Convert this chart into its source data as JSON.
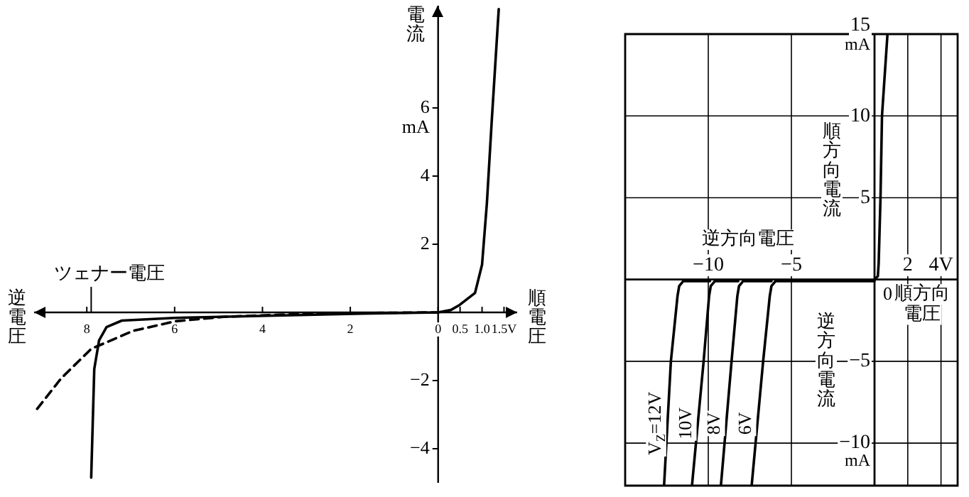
{
  "chart_data": [
    {
      "type": "line",
      "ylabel": "電流",
      "xlabel": "順電圧",
      "annotations": [
        "逆電圧",
        "mA",
        "ツェナー電圧"
      ],
      "xlim": [
        -9.2,
        1.8
      ],
      "xticks": [
        {
          "value": -8,
          "label": "8"
        },
        {
          "value": -6,
          "label": "6"
        },
        {
          "value": -4,
          "label": "4"
        },
        {
          "value": -2,
          "label": "2"
        },
        0,
        0.5,
        {
          "value": 1,
          "label": "1.0"
        },
        {
          "value": 1.5,
          "label": "1.5V"
        }
      ],
      "ylim": [
        -5,
        9
      ],
      "yticks": [
        {
          "value": -4,
          "label": "−4"
        },
        {
          "value": -2,
          "label": "−2"
        },
        2,
        4,
        6
      ],
      "legend": false,
      "marker": "none",
      "series": [
        {
          "color": "#000000",
          "x": [
            -7.9,
            -7.83,
            -7.72,
            -7.55,
            -7.2,
            -6,
            -3.9,
            -1.5,
            0,
            0.29,
            0.49,
            0.84,
            1,
            1.11,
            1.22,
            1.38
          ],
          "values": [
            -4.85,
            -1.66,
            -0.82,
            -0.43,
            -0.24,
            -0.16,
            -0.1,
            -0.03,
            0,
            0.07,
            0.22,
            0.57,
            1.4,
            3.2,
            5.6,
            8.9
          ]
        },
        {
          "color": "#000000",
          "line_style": "dashed",
          "x": [
            -9.13,
            -8.58,
            -7.9,
            -6.94,
            -5.98,
            -4.89,
            -2.84,
            0
          ],
          "values": [
            -2.83,
            -1.93,
            -1.07,
            -0.54,
            -0.26,
            -0.13,
            -0.03,
            0
          ]
        }
      ]
    },
    {
      "type": "line",
      "ylabel": "順方向電流",
      "xlabel": "順方向電圧",
      "annotations": [
        "逆方向電圧",
        "逆方向電流",
        "mA",
        "mA",
        "0"
      ],
      "xlim": [
        -15,
        5
      ],
      "xticks": [
        {
          "value": -10,
          "label": "−10"
        },
        {
          "value": -5,
          "label": "−5"
        },
        2,
        {
          "value": 4,
          "label": "4V"
        }
      ],
      "ylim": [
        -12.6,
        15
      ],
      "yticks": [
        {
          "value": -10,
          "label": "−10"
        },
        {
          "value": -5,
          "label": "−5"
        },
        5,
        10,
        15
      ],
      "grid": true,
      "legend": false,
      "marker": "none",
      "series": [
        {
          "color": "#000000",
          "x": [
            0,
            0.2,
            0.25,
            0.36,
            0.45,
            0.78
          ],
          "values": [
            0,
            0.2,
            1,
            5,
            10,
            15
          ]
        },
        {
          "name": "V$_{Z}$=12V",
          "color": "#000000",
          "x": [
            -9.9,
            -11.5,
            -11.75,
            -11.85,
            -12.25,
            -12.66
          ],
          "values": [
            -0.1,
            -0.1,
            -0.4,
            -1,
            -5,
            -12.6
          ]
        },
        {
          "name": "10V",
          "color": "#000000",
          "x": [
            -8.2,
            -9.6,
            -9.85,
            -9.95,
            -10.28,
            -10.98
          ],
          "values": [
            -0.1,
            -0.1,
            -0.4,
            -1,
            -5,
            -12.6
          ]
        },
        {
          "name": "8V",
          "color": "#000000",
          "x": [
            -6.2,
            -7.9,
            -8.15,
            -8.25,
            -8.6,
            -9.24
          ],
          "values": [
            -0.1,
            -0.1,
            -0.4,
            -1,
            -5,
            -12.6
          ]
        },
        {
          "name": "6V",
          "color": "#000000",
          "x": [
            0,
            -5.95,
            -6.2,
            -6.3,
            -6.7,
            -7.39
          ],
          "values": [
            -0.1,
            -0.1,
            -0.4,
            -1,
            -5,
            -12.6
          ]
        }
      ]
    }
  ]
}
